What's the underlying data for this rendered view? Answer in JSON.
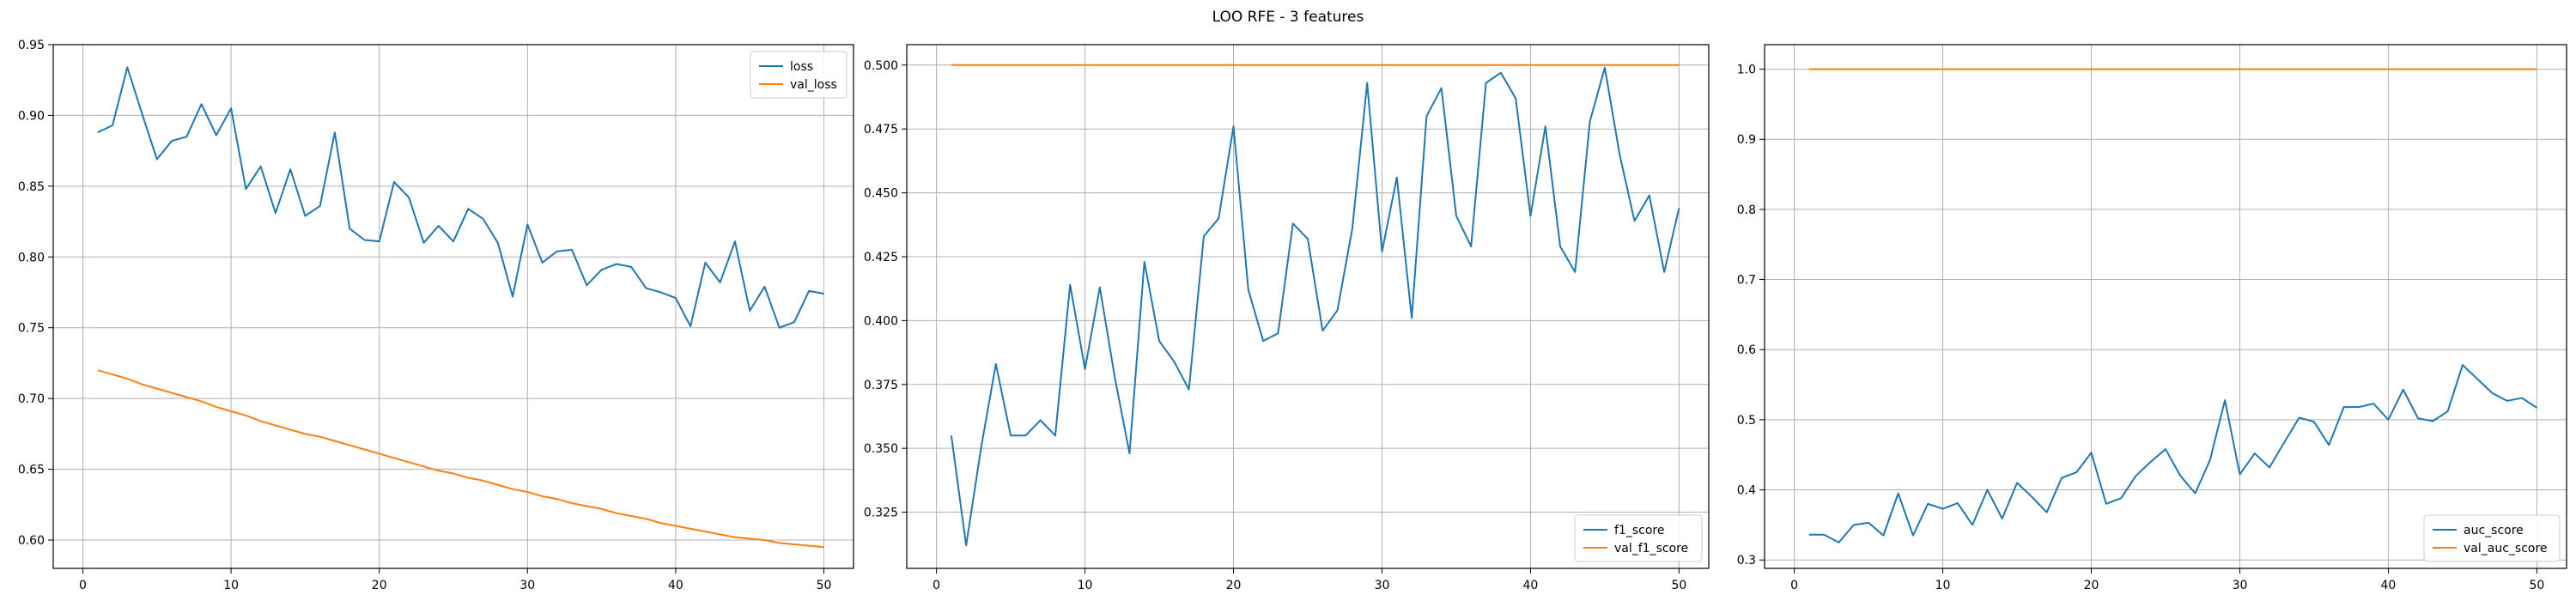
{
  "title": "LOO RFE - 3 features",
  "colors": {
    "series_1": "#1f77b4",
    "series_2": "#ff7f0e",
    "grid": "#b0b0b0"
  },
  "chart_data": [
    {
      "type": "line",
      "xlim": [
        -2,
        52
      ],
      "ylim": [
        0.58,
        0.95
      ],
      "xticks": [
        0,
        10,
        20,
        30,
        40,
        50
      ],
      "yticks": [
        0.6,
        0.65,
        0.7,
        0.75,
        0.8,
        0.85,
        0.9,
        0.95
      ],
      "ytick_labels": [
        "0.60",
        "0.65",
        "0.70",
        "0.75",
        "0.80",
        "0.85",
        "0.90",
        "0.95"
      ],
      "grid": true,
      "legend_position": "top-right",
      "series": [
        {
          "name": "loss",
          "color": "#1f77b4",
          "x": [
            1,
            2,
            3,
            4,
            5,
            6,
            7,
            8,
            9,
            10,
            11,
            12,
            13,
            14,
            15,
            16,
            17,
            18,
            19,
            20,
            21,
            22,
            23,
            24,
            25,
            26,
            27,
            28,
            29,
            30,
            31,
            32,
            33,
            34,
            35,
            36,
            37,
            38,
            39,
            40,
            41,
            42,
            43,
            44,
            45,
            46,
            47,
            48,
            49,
            50
          ],
          "y": [
            0.888,
            0.893,
            0.934,
            0.901,
            0.869,
            0.882,
            0.885,
            0.908,
            0.886,
            0.905,
            0.848,
            0.864,
            0.831,
            0.862,
            0.829,
            0.836,
            0.888,
            0.82,
            0.812,
            0.811,
            0.853,
            0.842,
            0.81,
            0.822,
            0.811,
            0.834,
            0.827,
            0.81,
            0.772,
            0.823,
            0.796,
            0.804,
            0.805,
            0.78,
            0.791,
            0.795,
            0.793,
            0.778,
            0.775,
            0.771,
            0.751,
            0.796,
            0.782,
            0.811,
            0.762,
            0.779,
            0.75,
            0.754,
            0.776,
            0.774
          ]
        },
        {
          "name": "val_loss",
          "color": "#ff7f0e",
          "x": [
            1,
            2,
            3,
            4,
            5,
            6,
            7,
            8,
            9,
            10,
            11,
            12,
            13,
            14,
            15,
            16,
            17,
            18,
            19,
            20,
            21,
            22,
            23,
            24,
            25,
            26,
            27,
            28,
            29,
            30,
            31,
            32,
            33,
            34,
            35,
            36,
            37,
            38,
            39,
            40,
            41,
            42,
            43,
            44,
            45,
            46,
            47,
            48,
            49,
            50
          ],
          "y": [
            0.72,
            0.717,
            0.714,
            0.71,
            0.707,
            0.704,
            0.701,
            0.698,
            0.694,
            0.691,
            0.688,
            0.684,
            0.681,
            0.678,
            0.675,
            0.673,
            0.67,
            0.667,
            0.664,
            0.661,
            0.658,
            0.655,
            0.652,
            0.649,
            0.647,
            0.644,
            0.642,
            0.639,
            0.636,
            0.634,
            0.631,
            0.629,
            0.626,
            0.624,
            0.622,
            0.619,
            0.617,
            0.615,
            0.612,
            0.61,
            0.608,
            0.606,
            0.604,
            0.602,
            0.601,
            0.6,
            0.598,
            0.597,
            0.596,
            0.595
          ]
        }
      ]
    },
    {
      "type": "line",
      "xlim": [
        -2,
        52
      ],
      "ylim": [
        0.303,
        0.508
      ],
      "xticks": [
        0,
        10,
        20,
        30,
        40,
        50
      ],
      "yticks": [
        0.325,
        0.35,
        0.375,
        0.4,
        0.425,
        0.45,
        0.475,
        0.5
      ],
      "ytick_labels": [
        "0.325",
        "0.350",
        "0.375",
        "0.400",
        "0.425",
        "0.450",
        "0.475",
        "0.500"
      ],
      "grid": true,
      "legend_position": "bottom-right",
      "series": [
        {
          "name": "f1_score",
          "color": "#1f77b4",
          "x": [
            1,
            2,
            3,
            4,
            5,
            6,
            7,
            8,
            9,
            10,
            11,
            12,
            13,
            14,
            15,
            16,
            17,
            18,
            19,
            20,
            21,
            22,
            23,
            24,
            25,
            26,
            27,
            28,
            29,
            30,
            31,
            32,
            33,
            34,
            35,
            36,
            37,
            38,
            39,
            40,
            41,
            42,
            43,
            44,
            45,
            46,
            47,
            48,
            49,
            50
          ],
          "y": [
            0.355,
            0.312,
            0.35,
            0.383,
            0.355,
            0.355,
            0.361,
            0.355,
            0.414,
            0.381,
            0.413,
            0.378,
            0.348,
            0.423,
            0.392,
            0.384,
            0.373,
            0.433,
            0.44,
            0.476,
            0.412,
            0.392,
            0.395,
            0.438,
            0.432,
            0.396,
            0.404,
            0.436,
            0.493,
            0.427,
            0.456,
            0.401,
            0.48,
            0.491,
            0.441,
            0.429,
            0.493,
            0.497,
            0.487,
            0.441,
            0.476,
            0.429,
            0.419,
            0.478,
            0.499,
            0.465,
            0.439,
            0.449,
            0.419,
            0.444
          ]
        },
        {
          "name": "val_f1_score",
          "color": "#ff7f0e",
          "x": [
            1,
            50
          ],
          "y": [
            0.5,
            0.5
          ]
        }
      ]
    },
    {
      "type": "line",
      "xlim": [
        -2,
        52
      ],
      "ylim": [
        0.288,
        1.035
      ],
      "xticks": [
        0,
        10,
        20,
        30,
        40,
        50
      ],
      "yticks": [
        0.3,
        0.4,
        0.5,
        0.6,
        0.7,
        0.8,
        0.9,
        1.0
      ],
      "ytick_labels": [
        "0.3",
        "0.4",
        "0.5",
        "0.6",
        "0.7",
        "0.8",
        "0.9",
        "1.0"
      ],
      "grid": true,
      "legend_position": "bottom-right",
      "series": [
        {
          "name": "auc_score",
          "color": "#1f77b4",
          "x": [
            1,
            2,
            3,
            4,
            5,
            6,
            7,
            8,
            9,
            10,
            11,
            12,
            13,
            14,
            15,
            16,
            17,
            18,
            19,
            20,
            21,
            22,
            23,
            24,
            25,
            26,
            27,
            28,
            29,
            30,
            31,
            32,
            33,
            34,
            35,
            36,
            37,
            38,
            39,
            40,
            41,
            42,
            43,
            44,
            45,
            46,
            47,
            48,
            49,
            50
          ],
          "y": [
            0.336,
            0.336,
            0.325,
            0.35,
            0.353,
            0.335,
            0.395,
            0.335,
            0.38,
            0.373,
            0.381,
            0.35,
            0.4,
            0.359,
            0.41,
            0.39,
            0.368,
            0.417,
            0.425,
            0.453,
            0.38,
            0.388,
            0.42,
            0.44,
            0.458,
            0.42,
            0.395,
            0.443,
            0.528,
            0.422,
            0.452,
            0.432,
            0.468,
            0.503,
            0.497,
            0.464,
            0.518,
            0.518,
            0.523,
            0.5,
            0.543,
            0.502,
            0.498,
            0.512,
            0.578,
            0.558,
            0.538,
            0.527,
            0.531,
            0.517
          ]
        },
        {
          "name": "val_auc_score",
          "color": "#ff7f0e",
          "x": [
            1,
            50
          ],
          "y": [
            1.0,
            1.0
          ]
        }
      ]
    }
  ]
}
